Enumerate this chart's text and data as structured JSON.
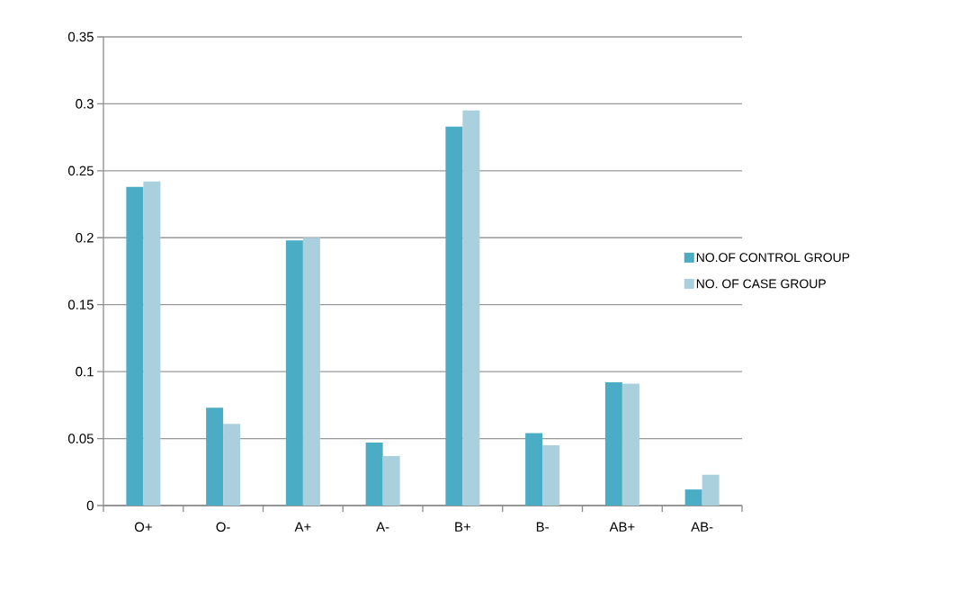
{
  "chart_data": {
    "type": "bar",
    "categories": [
      "O+",
      "O-",
      "A+",
      "A-",
      "B+",
      "B-",
      "AB+",
      "AB-"
    ],
    "series": [
      {
        "name": "NO.OF CONTROL GROUP",
        "color": "#4bacc6",
        "values": [
          0.238,
          0.073,
          0.198,
          0.047,
          0.283,
          0.054,
          0.092,
          0.012
        ]
      },
      {
        "name": "NO. OF CASE GROUP",
        "color": "#aacfdd",
        "values": [
          0.242,
          0.061,
          0.2,
          0.037,
          0.295,
          0.045,
          0.091,
          0.023
        ]
      }
    ],
    "ylim": [
      0,
      0.35
    ],
    "yticks": [
      0,
      0.05,
      0.1,
      0.15,
      0.2,
      0.25,
      0.3,
      0.35
    ],
    "grid": "y",
    "legend": "right"
  }
}
